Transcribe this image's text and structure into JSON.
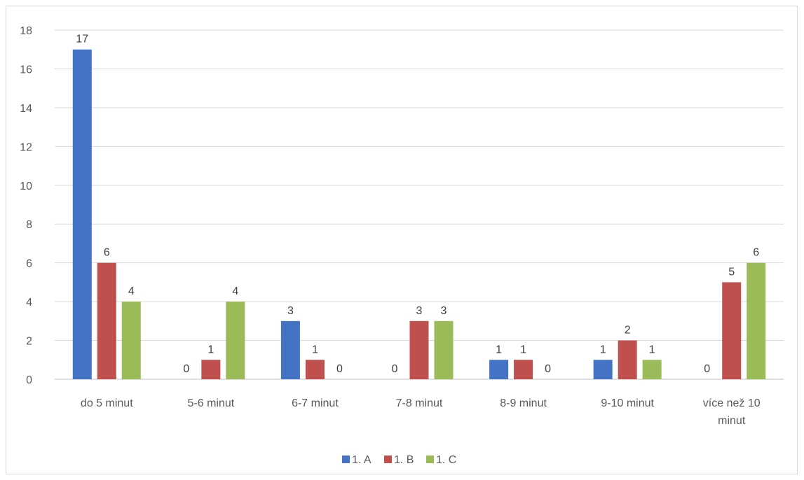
{
  "chart_data": {
    "type": "bar",
    "title": "",
    "xlabel": "",
    "ylabel": "",
    "ylim": [
      0,
      18
    ],
    "yticks": [
      0,
      2,
      4,
      6,
      8,
      10,
      12,
      14,
      16,
      18
    ],
    "grid": true,
    "legend_position": "bottom",
    "categories": [
      "do 5 minut",
      "5-6 minut",
      "6-7 minut",
      "7-8 minut",
      "8-9 minut",
      "9-10 minut",
      "více než 10 minut"
    ],
    "category_lines": [
      [
        "do 5 minut"
      ],
      [
        "5-6 minut"
      ],
      [
        "6-7 minut"
      ],
      [
        "7-8 minut"
      ],
      [
        "8-9 minut"
      ],
      [
        "9-10 minut"
      ],
      [
        "více než 10",
        "minut"
      ]
    ],
    "series": [
      {
        "name": "1. A",
        "color": "#4472c4",
        "values": [
          17,
          0,
          3,
          0,
          1,
          1,
          0
        ]
      },
      {
        "name": "1. B",
        "color": "#c0504d",
        "values": [
          6,
          1,
          1,
          3,
          1,
          2,
          5
        ]
      },
      {
        "name": "1. C",
        "color": "#9bbb59",
        "values": [
          4,
          4,
          0,
          3,
          0,
          1,
          6
        ]
      }
    ]
  }
}
